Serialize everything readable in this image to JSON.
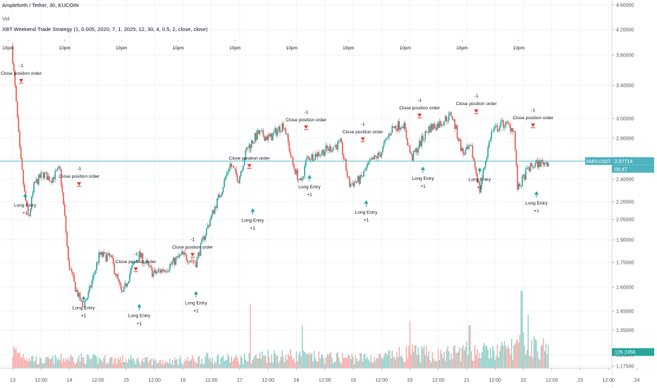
{
  "header": {
    "symbol_line": "Ampleforth / Tether, 30, KUCOIN",
    "volume_label": "Vol",
    "strategy_line": "XBT Weekend Trade Strategy (1, 0.005, 2020, 7, 1, 2025, 12, 30, 4, 0.5, 2, close, close)"
  },
  "chart_data": {
    "type": "candlestick",
    "symbol": "Ampleforth / Tether, 30, KUCOIN",
    "price_axis": {
      "ticks": [
        1.175,
        1.25,
        1.35,
        1.45,
        1.6,
        1.75,
        1.9,
        2.05,
        2.2,
        2.4,
        2.6,
        2.8,
        3.0,
        3.4,
        3.8,
        4.2,
        4.6
      ],
      "tick_labels": [
        "1.17500",
        "1.25000",
        "1.35000",
        "1.45000",
        "1.60000",
        "1.75000",
        "1.90000",
        "2.05000",
        "2.20000",
        "2.40000",
        "2.60000",
        "2.80000",
        "3.00000",
        "3.40000",
        "3.80000",
        "4.20000",
        "4.60000"
      ]
    },
    "time_axis": {
      "tick_labels": [
        "13",
        "12:00",
        "14",
        "12:00",
        "15",
        "12:00",
        "16",
        "12:00",
        "17",
        "12:00",
        "18",
        "12:00",
        "19",
        "12:00",
        "20",
        "12:00",
        "21",
        "12:00",
        "22",
        "12:00",
        "23",
        "12:00",
        "24"
      ],
      "session_marker_label": "10pm",
      "session_markers": 10
    },
    "price_path": [
      {
        "day": 13.0,
        "price": 3.95
      },
      {
        "day": 13.08,
        "price": 3.2
      },
      {
        "day": 13.14,
        "price": 2.7
      },
      {
        "day": 13.22,
        "price": 2.3
      },
      {
        "day": 13.3,
        "price": 2.05
      },
      {
        "day": 13.4,
        "price": 2.35
      },
      {
        "day": 13.55,
        "price": 2.45
      },
      {
        "day": 13.7,
        "price": 2.4
      },
      {
        "day": 13.85,
        "price": 2.5
      },
      {
        "day": 14.0,
        "price": 1.75
      },
      {
        "day": 14.12,
        "price": 1.6
      },
      {
        "day": 14.25,
        "price": 1.48
      },
      {
        "day": 14.35,
        "price": 1.55
      },
      {
        "day": 14.55,
        "price": 1.8
      },
      {
        "day": 14.75,
        "price": 1.78
      },
      {
        "day": 14.95,
        "price": 1.55
      },
      {
        "day": 15.1,
        "price": 1.7
      },
      {
        "day": 15.25,
        "price": 1.8
      },
      {
        "day": 15.5,
        "price": 1.68
      },
      {
        "day": 15.75,
        "price": 1.72
      },
      {
        "day": 16.0,
        "price": 1.8
      },
      {
        "day": 16.25,
        "price": 1.75
      },
      {
        "day": 16.5,
        "price": 2.05
      },
      {
        "day": 16.7,
        "price": 2.3
      },
      {
        "day": 16.85,
        "price": 2.55
      },
      {
        "day": 17.0,
        "price": 2.4
      },
      {
        "day": 17.15,
        "price": 2.7
      },
      {
        "day": 17.35,
        "price": 2.85
      },
      {
        "day": 17.55,
        "price": 2.8
      },
      {
        "day": 17.8,
        "price": 2.95
      },
      {
        "day": 17.95,
        "price": 2.55
      },
      {
        "day": 18.1,
        "price": 2.35
      },
      {
        "day": 18.2,
        "price": 2.6
      },
      {
        "day": 18.4,
        "price": 2.65
      },
      {
        "day": 18.6,
        "price": 2.7
      },
      {
        "day": 18.8,
        "price": 2.75
      },
      {
        "day": 18.95,
        "price": 2.35
      },
      {
        "day": 19.15,
        "price": 2.4
      },
      {
        "day": 19.3,
        "price": 2.55
      },
      {
        "day": 19.5,
        "price": 2.65
      },
      {
        "day": 19.7,
        "price": 2.9
      },
      {
        "day": 19.9,
        "price": 2.95
      },
      {
        "day": 20.05,
        "price": 2.6
      },
      {
        "day": 20.2,
        "price": 2.75
      },
      {
        "day": 20.35,
        "price": 2.9
      },
      {
        "day": 20.55,
        "price": 2.95
      },
      {
        "day": 20.75,
        "price": 3.05
      },
      {
        "day": 20.95,
        "price": 2.65
      },
      {
        "day": 21.1,
        "price": 2.7
      },
      {
        "day": 21.25,
        "price": 2.3
      },
      {
        "day": 21.45,
        "price": 2.85
      },
      {
        "day": 21.65,
        "price": 2.95
      },
      {
        "day": 21.85,
        "price": 2.9
      },
      {
        "day": 21.92,
        "price": 2.3
      },
      {
        "day": 22.1,
        "price": 2.5
      },
      {
        "day": 22.25,
        "price": 2.55
      },
      {
        "day": 22.45,
        "price": 2.57
      }
    ],
    "volume_profile": [
      {
        "day": 13.0,
        "level": 0.2
      },
      {
        "day": 13.5,
        "level": 0.08
      },
      {
        "day": 14.0,
        "level": 0.12
      },
      {
        "day": 14.5,
        "level": 0.1
      },
      {
        "day": 15.0,
        "level": 0.1
      },
      {
        "day": 15.5,
        "level": 0.08
      },
      {
        "day": 16.0,
        "level": 0.09
      },
      {
        "day": 16.5,
        "level": 0.12
      },
      {
        "day": 17.0,
        "level": 0.1
      },
      {
        "day": 17.5,
        "level": 0.15
      },
      {
        "day": 18.0,
        "level": 0.14
      },
      {
        "day": 18.5,
        "level": 0.12
      },
      {
        "day": 19.0,
        "level": 0.12
      },
      {
        "day": 19.5,
        "level": 0.12
      },
      {
        "day": 20.0,
        "level": 0.18
      },
      {
        "day": 20.5,
        "level": 0.15
      },
      {
        "day": 21.0,
        "level": 0.2
      },
      {
        "day": 21.5,
        "level": 0.18
      },
      {
        "day": 22.0,
        "level": 0.28
      },
      {
        "day": 22.5,
        "level": 0.2
      }
    ],
    "volume_spikes": [
      {
        "day": 17.18,
        "level": 0.75
      },
      {
        "day": 18.1,
        "level": 0.5
      },
      {
        "day": 20.0,
        "level": 0.55
      },
      {
        "day": 21.05,
        "level": 0.5
      },
      {
        "day": 21.97,
        "level": 0.9
      },
      {
        "day": 22.08,
        "level": 0.62
      }
    ],
    "signals": [
      {
        "type": "close",
        "day": 13.15,
        "price": 3.42,
        "qty": "-1",
        "label": "Close position order"
      },
      {
        "type": "long",
        "day": 13.22,
        "price": 2.28,
        "qty": "+1",
        "label": "Long Entry"
      },
      {
        "type": "close",
        "day": 14.17,
        "price": 2.33,
        "qty": "-1",
        "label": "Close position order"
      },
      {
        "type": "long",
        "day": 14.25,
        "price": 1.55,
        "qty": "+1",
        "label": "Long Entry"
      },
      {
        "type": "close",
        "day": 15.17,
        "price": 1.69,
        "qty": "-1",
        "label": "Close position order"
      },
      {
        "type": "long",
        "day": 15.23,
        "price": 1.5,
        "qty": "+1",
        "label": "Long Entry"
      },
      {
        "type": "close",
        "day": 16.17,
        "price": 1.78,
        "qty": "-1",
        "label": "Close position order"
      },
      {
        "type": "long",
        "day": 16.23,
        "price": 1.58,
        "qty": "+1",
        "label": "Long Entry"
      },
      {
        "type": "close",
        "day": 17.17,
        "price": 2.5,
        "qty": "-1",
        "label": "Close position order"
      },
      {
        "type": "long",
        "day": 17.23,
        "price": 2.15,
        "qty": "+1",
        "label": "Long Entry"
      },
      {
        "type": "close",
        "day": 18.17,
        "price": 2.88,
        "qty": "-1",
        "label": "Close position order"
      },
      {
        "type": "long",
        "day": 18.23,
        "price": 2.45,
        "qty": "+1",
        "label": "Long Entry"
      },
      {
        "type": "close",
        "day": 19.17,
        "price": 2.76,
        "qty": "-1",
        "label": "Close position order"
      },
      {
        "type": "long",
        "day": 19.23,
        "price": 2.22,
        "qty": "+1",
        "label": "Long Entry"
      },
      {
        "type": "close",
        "day": 20.17,
        "price": 3.0,
        "qty": "-1",
        "label": "Close position order"
      },
      {
        "type": "long",
        "day": 20.23,
        "price": 2.53,
        "qty": "+1",
        "label": "Long Entry"
      },
      {
        "type": "close",
        "day": 21.17,
        "price": 3.05,
        "qty": "-1",
        "label": "Close position order"
      },
      {
        "type": "long",
        "day": 21.23,
        "price": 2.52,
        "qty": "+1",
        "label": "Long Entry"
      },
      {
        "type": "close",
        "day": 22.17,
        "price": 2.9,
        "qty": "-1",
        "label": "Close position order"
      },
      {
        "type": "long",
        "day": 22.23,
        "price": 2.3,
        "qty": "+1",
        "label": "Long Entry"
      }
    ],
    "last_price": 2.57714,
    "last_price_label": "2.57714",
    "symbol_tag": "AMPLUSDT",
    "countdown": "00:47",
    "volume_value_label": "126.245K",
    "colors": {
      "up": "#26a69a",
      "down": "#ef5350",
      "volume_up": "#8fd0c9",
      "volume_down": "#f7aaa8",
      "last_price_line": "#4fb3c0",
      "close_marker": "#e53935",
      "entry_marker": "#26a69a",
      "axis_text": "#555555",
      "grid": "#f0f3fa"
    }
  }
}
